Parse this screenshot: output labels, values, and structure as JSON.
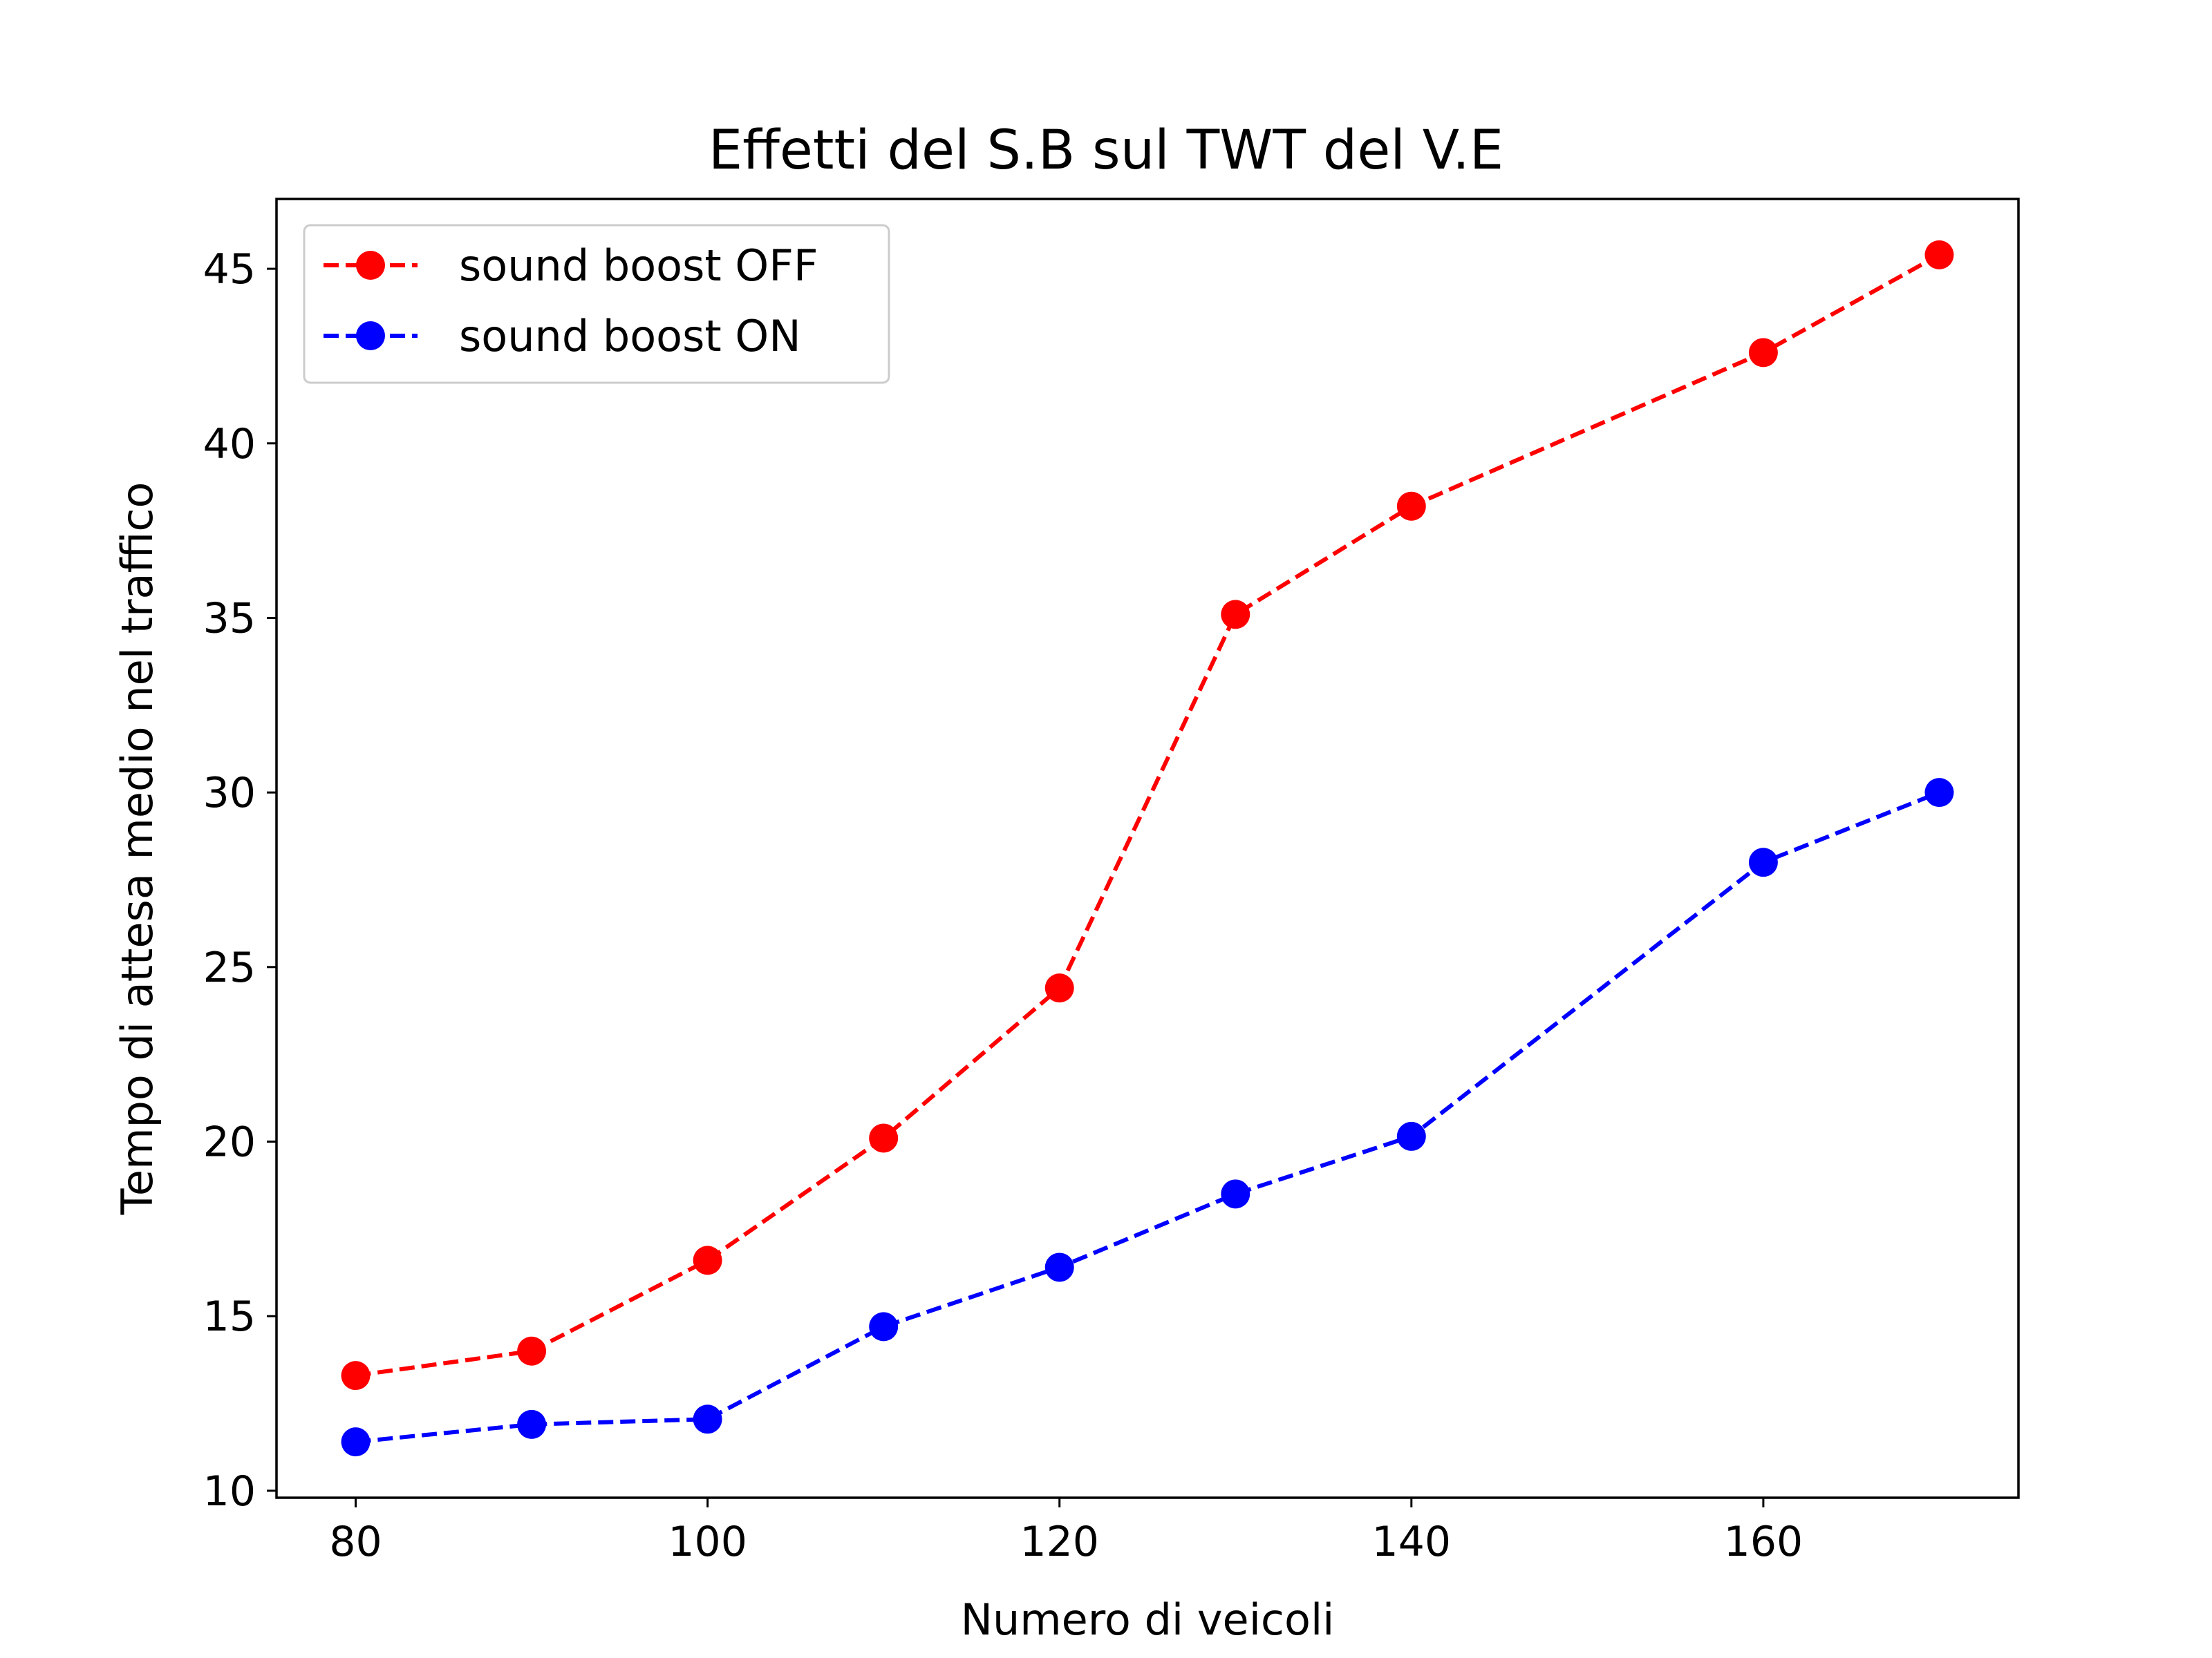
{
  "chart_data": {
    "type": "line",
    "title": "Effetti del S.B sul TWT del V.E",
    "xlabel": "Numero di veicoli",
    "ylabel": "Tempo di attesa medio nel traffico",
    "x": [
      80,
      90,
      100,
      110,
      120,
      130,
      140,
      160,
      170
    ],
    "xlim": [
      75.5,
      174.5
    ],
    "ylim": [
      9.8,
      47.0
    ],
    "xticks": [
      80,
      100,
      120,
      140,
      160
    ],
    "yticks": [
      10,
      15,
      20,
      25,
      30,
      35,
      40,
      45
    ],
    "grid": false,
    "legend_position": "top-left",
    "series": [
      {
        "name": "sound boost OFF",
        "color": "#ff0000",
        "line_style": "dashed",
        "marker": "circle",
        "values": [
          13.3,
          14.0,
          16.6,
          20.1,
          24.4,
          35.1,
          38.2,
          42.6,
          45.4
        ]
      },
      {
        "name": "sound boost ON",
        "color": "#0000ff",
        "line_style": "dashed",
        "marker": "circle",
        "values": [
          11.4,
          11.9,
          12.05,
          14.7,
          16.4,
          18.5,
          20.15,
          28.0,
          30.0
        ]
      }
    ]
  }
}
